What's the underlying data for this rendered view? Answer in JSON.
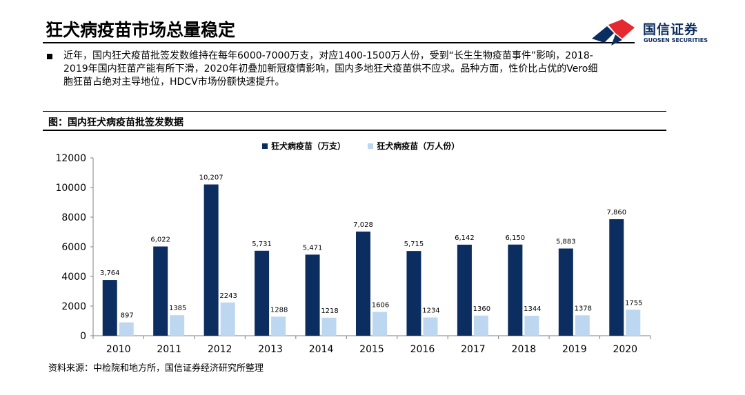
{
  "header": {
    "title": "狂犬病疫苗市场总量稳定",
    "logo_cn": "国信证券",
    "logo_en": "GUOSEN SECURITIES"
  },
  "bullet": {
    "text": "近年，国内狂犬疫苗批签发数维持在每年6000-7000万支，对应1400-1500万人份，受到“长生生物疫苗事件”影响，2018-2019年国内狂苗产能有所下滑，2020年初叠加新冠疫情影响，国内多地狂犬疫苗供不应求。品种方面，性价比占优的Vero细胞狂苗占绝对主导地位，HDCV市场份额快速提升。"
  },
  "figure": {
    "title": "图：国内狂犬病疫苗批签发数据",
    "source": "资料来源：中检院和地方所，国信证券经济研究所整理"
  },
  "colors": {
    "series1": "#0b2d5f",
    "series2": "#bcd7ef",
    "logo_red": "#e32b2f",
    "logo_blue": "#0b2d5f"
  },
  "chart_data": {
    "type": "bar",
    "categories": [
      "2010",
      "2011",
      "2012",
      "2013",
      "2014",
      "2015",
      "2016",
      "2017",
      "2018",
      "2019",
      "2020"
    ],
    "series": [
      {
        "name": "狂犬病疫苗（万支）",
        "values": [
          3764,
          6022,
          10207,
          5731,
          5471,
          7028,
          5715,
          6142,
          6150,
          5883,
          7860
        ],
        "labels": [
          "3,764",
          "6,022",
          "10,207",
          "5,731",
          "5,471",
          "7,028",
          "5,715",
          "6,142",
          "6,150",
          "5,883",
          "7,860"
        ]
      },
      {
        "name": "狂犬病疫苗（万人份）",
        "values": [
          897,
          1385,
          2243,
          1288,
          1218,
          1606,
          1234,
          1360,
          1344,
          1378,
          1755
        ],
        "labels": [
          "897",
          "1385",
          "2243",
          "1288",
          "1218",
          "1606",
          "1234",
          "1360",
          "1344",
          "1378",
          "1755"
        ]
      }
    ],
    "yticks": [
      "0",
      "2000",
      "4000",
      "6000",
      "8000",
      "10000",
      "12000"
    ],
    "ylim": [
      0,
      12000
    ],
    "grid": false,
    "legend": "top-center"
  }
}
